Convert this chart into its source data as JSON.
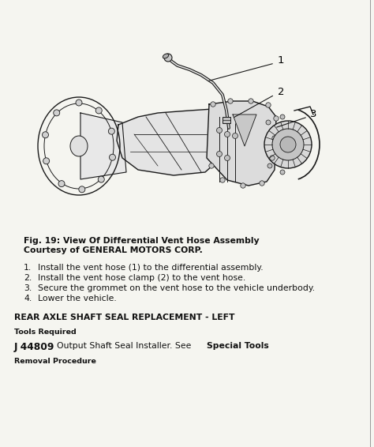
{
  "bg_color": "#f5f5f0",
  "fig_caption_line1": "Fig. 19: View Of Differential Vent Hose Assembly",
  "fig_caption_line2": "Courtesy of GENERAL MOTORS CORP.",
  "steps": [
    "Install the vent hose (1) to the differential assembly.",
    "Install the vent hose clamp (2) to the vent hose.",
    "Secure the grommet on the vent hose to the vehicle underbody.",
    "Lower the vehicle."
  ],
  "section_title": "REAR AXLE SHAFT SEAL REPLACEMENT - LEFT",
  "tools_required_label": "Tools Required",
  "tool_item_bold": "J 44809",
  "tool_item_normal": " Output Shaft Seal Installer. See ",
  "tool_item_bold2": "Special Tools",
  "tool_item_end": ".",
  "removal_label": "Removal Procedure",
  "text_color": "#111111",
  "line_color": "#1a1a1a",
  "caption_fontsize": 7.8,
  "step_fontsize": 7.8,
  "section_fontsize": 7.8,
  "small_fontsize": 6.8,
  "tool_fontsize": 7.8
}
